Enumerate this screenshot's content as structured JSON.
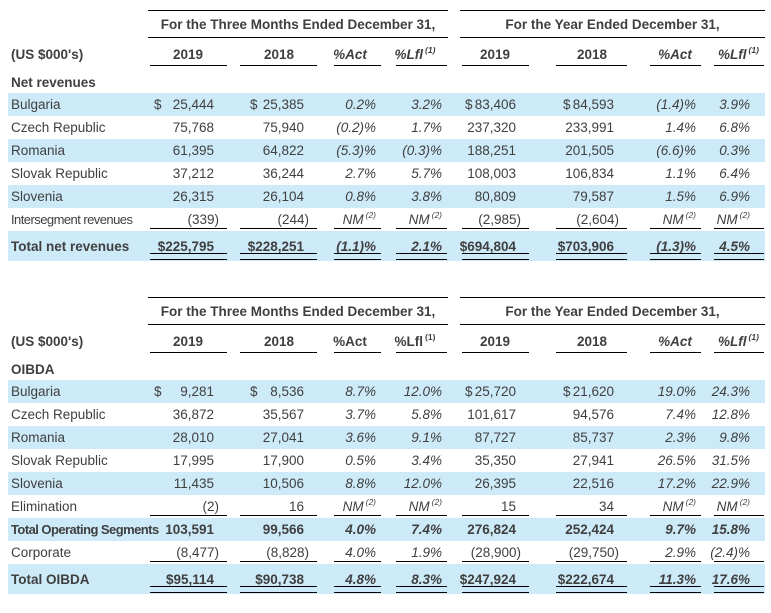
{
  "colors": {
    "stripe": "#cdeaf8",
    "line": "#000000",
    "text": "#3f3f3f"
  },
  "tables": [
    {
      "id": "net-revenues",
      "units_label": "(US $000's)",
      "section_label": "Net revenues",
      "groups": [
        {
          "title": "For the Three Months Ended December 31,",
          "columns": [
            {
              "label": "2019"
            },
            {
              "label": "2018"
            },
            {
              "label": "%Act",
              "italic": true
            },
            {
              "label": "%Lfl",
              "sup": "(1)",
              "italic": true
            }
          ]
        },
        {
          "title": "For the Year Ended December 31,",
          "columns": [
            {
              "label": "2019"
            },
            {
              "label": "2018"
            },
            {
              "label": "%Act",
              "italic": true
            },
            {
              "label": "%Lfl",
              "sup": "(1)",
              "italic": true
            }
          ]
        }
      ],
      "rows": [
        {
          "label": "Bulgaria",
          "stripe": true,
          "cells": [
            {
              "cur": "$",
              "v": "25,444"
            },
            {
              "cur": "$",
              "v": "25,385"
            },
            {
              "v": "0.2%"
            },
            {
              "v": "3.2%"
            },
            {
              "cur": "$",
              "v": "83,406"
            },
            {
              "cur": "$",
              "v": "84,593"
            },
            {
              "v": "(1.4)%"
            },
            {
              "v": "3.9%"
            }
          ]
        },
        {
          "label": "Czech Republic",
          "cells": [
            {
              "v": "75,768"
            },
            {
              "v": "75,940"
            },
            {
              "v": "(0.2)%"
            },
            {
              "v": "1.7%"
            },
            {
              "v": "237,320"
            },
            {
              "v": "233,991"
            },
            {
              "v": "1.4%"
            },
            {
              "v": "6.8%"
            }
          ]
        },
        {
          "label": "Romania",
          "stripe": true,
          "cells": [
            {
              "v": "61,395"
            },
            {
              "v": "64,822"
            },
            {
              "v": "(5.3)%"
            },
            {
              "v": "(0.3)%"
            },
            {
              "v": "188,251"
            },
            {
              "v": "201,505"
            },
            {
              "v": "(6.6)%"
            },
            {
              "v": "0.3%"
            }
          ]
        },
        {
          "label": "Slovak Republic",
          "cells": [
            {
              "v": "37,212"
            },
            {
              "v": "36,244"
            },
            {
              "v": "2.7%"
            },
            {
              "v": "5.7%"
            },
            {
              "v": "108,003"
            },
            {
              "v": "106,834"
            },
            {
              "v": "1.1%"
            },
            {
              "v": "6.4%"
            }
          ]
        },
        {
          "label": "Slovenia",
          "stripe": true,
          "cells": [
            {
              "v": "26,315"
            },
            {
              "v": "26,104"
            },
            {
              "v": "0.8%"
            },
            {
              "v": "3.8%"
            },
            {
              "v": "80,809"
            },
            {
              "v": "79,587"
            },
            {
              "v": "1.5%"
            },
            {
              "v": "6.9%"
            }
          ]
        },
        {
          "label": "Intersegment revenues",
          "rule": true,
          "cells": [
            {
              "v": "(339)"
            },
            {
              "v": "(244)"
            },
            {
              "v": "NM",
              "sup": "(2)"
            },
            {
              "v": "NM",
              "sup": "(2)"
            },
            {
              "v": "(2,985)"
            },
            {
              "v": "(2,604)"
            },
            {
              "v": "NM",
              "sup": "(2)"
            },
            {
              "v": "NM",
              "sup": "(2)"
            }
          ]
        },
        {
          "label": "Total net revenues",
          "stripe": true,
          "bold": true,
          "total": true,
          "dbl": true,
          "cells": [
            {
              "v": "$225,795"
            },
            {
              "v": "$228,251"
            },
            {
              "v": "(1.1)%"
            },
            {
              "v": "2.1%"
            },
            {
              "v": "$694,804"
            },
            {
              "v": "$703,906"
            },
            {
              "v": "(1.3)%"
            },
            {
              "v": "4.5%"
            }
          ]
        }
      ]
    },
    {
      "id": "oibda",
      "units_label": "(US $000's)",
      "section_label": "OIBDA",
      "groups": [
        {
          "title": "For the Three Months Ended December 31,",
          "columns": [
            {
              "label": "2019"
            },
            {
              "label": "2018"
            },
            {
              "label": "%Act",
              "italic": false
            },
            {
              "label": "%Lfl",
              "sup": "(1)",
              "italic": false
            }
          ]
        },
        {
          "title": "For the Year Ended December 31,",
          "columns": [
            {
              "label": "2019"
            },
            {
              "label": "2018"
            },
            {
              "label": "%Act",
              "italic": true
            },
            {
              "label": "%Lfl",
              "sup": "(1)",
              "italic": true
            }
          ]
        }
      ],
      "rows": [
        {
          "label": "Bulgaria",
          "stripe": true,
          "cells": [
            {
              "cur": "$",
              "v": "9,281"
            },
            {
              "cur": "$",
              "v": "8,536"
            },
            {
              "v": "8.7%"
            },
            {
              "v": "12.0%"
            },
            {
              "cur": "$",
              "v": "25,720"
            },
            {
              "cur": "$",
              "v": "21,620"
            },
            {
              "v": "19.0%"
            },
            {
              "v": "24.3%"
            }
          ]
        },
        {
          "label": "Czech Republic",
          "cells": [
            {
              "v": "36,872"
            },
            {
              "v": "35,567"
            },
            {
              "v": "3.7%"
            },
            {
              "v": "5.8%"
            },
            {
              "v": "101,617"
            },
            {
              "v": "94,576"
            },
            {
              "v": "7.4%"
            },
            {
              "v": "12.8%"
            }
          ]
        },
        {
          "label": "Romania",
          "stripe": true,
          "cells": [
            {
              "v": "28,010"
            },
            {
              "v": "27,041"
            },
            {
              "v": "3.6%"
            },
            {
              "v": "9.1%"
            },
            {
              "v": "87,727"
            },
            {
              "v": "85,737"
            },
            {
              "v": "2.3%"
            },
            {
              "v": "9.8%"
            }
          ]
        },
        {
          "label": "Slovak Republic",
          "cells": [
            {
              "v": "17,995"
            },
            {
              "v": "17,900"
            },
            {
              "v": "0.5%"
            },
            {
              "v": "3.4%"
            },
            {
              "v": "35,350"
            },
            {
              "v": "27,941"
            },
            {
              "v": "26.5%"
            },
            {
              "v": "31.5%"
            }
          ]
        },
        {
          "label": "Slovenia",
          "stripe": true,
          "cells": [
            {
              "v": "11,435"
            },
            {
              "v": "10,506"
            },
            {
              "v": "8.8%"
            },
            {
              "v": "12.0%"
            },
            {
              "v": "26,395"
            },
            {
              "v": "22,516"
            },
            {
              "v": "17.2%"
            },
            {
              "v": "22.9%"
            }
          ]
        },
        {
          "label": "Elimination",
          "rule": true,
          "cells": [
            {
              "v": "(2)"
            },
            {
              "v": "16"
            },
            {
              "v": "NM",
              "sup": "(2)"
            },
            {
              "v": "NM",
              "sup": "(2)"
            },
            {
              "v": "15"
            },
            {
              "v": "34"
            },
            {
              "v": "NM",
              "sup": "(2)"
            },
            {
              "v": "NM",
              "sup": "(2)"
            }
          ]
        },
        {
          "label": "Total Operating Segments",
          "stripe": true,
          "bold": true,
          "cells": [
            {
              "v": "103,591"
            },
            {
              "v": "99,566"
            },
            {
              "v": "4.0%"
            },
            {
              "v": "7.4%"
            },
            {
              "v": "276,824"
            },
            {
              "v": "252,424"
            },
            {
              "v": "9.7%"
            },
            {
              "v": "15.8%"
            }
          ]
        },
        {
          "label": "Corporate",
          "rule": true,
          "cells": [
            {
              "v": "(8,477)"
            },
            {
              "v": "(8,828)"
            },
            {
              "v": "4.0%"
            },
            {
              "v": "1.9%"
            },
            {
              "v": "(28,900)"
            },
            {
              "v": "(29,750)"
            },
            {
              "v": "2.9%"
            },
            {
              "v": "(2.4)%"
            }
          ]
        },
        {
          "label": "Total OIBDA",
          "stripe": true,
          "bold": true,
          "total": true,
          "dbl": true,
          "cells": [
            {
              "v": "$95,114"
            },
            {
              "v": "$90,738"
            },
            {
              "v": "4.8%"
            },
            {
              "v": "8.3%"
            },
            {
              "v": "$247,924"
            },
            {
              "v": "$222,674"
            },
            {
              "v": "11.3%"
            },
            {
              "v": "17.6%"
            }
          ]
        }
      ]
    }
  ]
}
